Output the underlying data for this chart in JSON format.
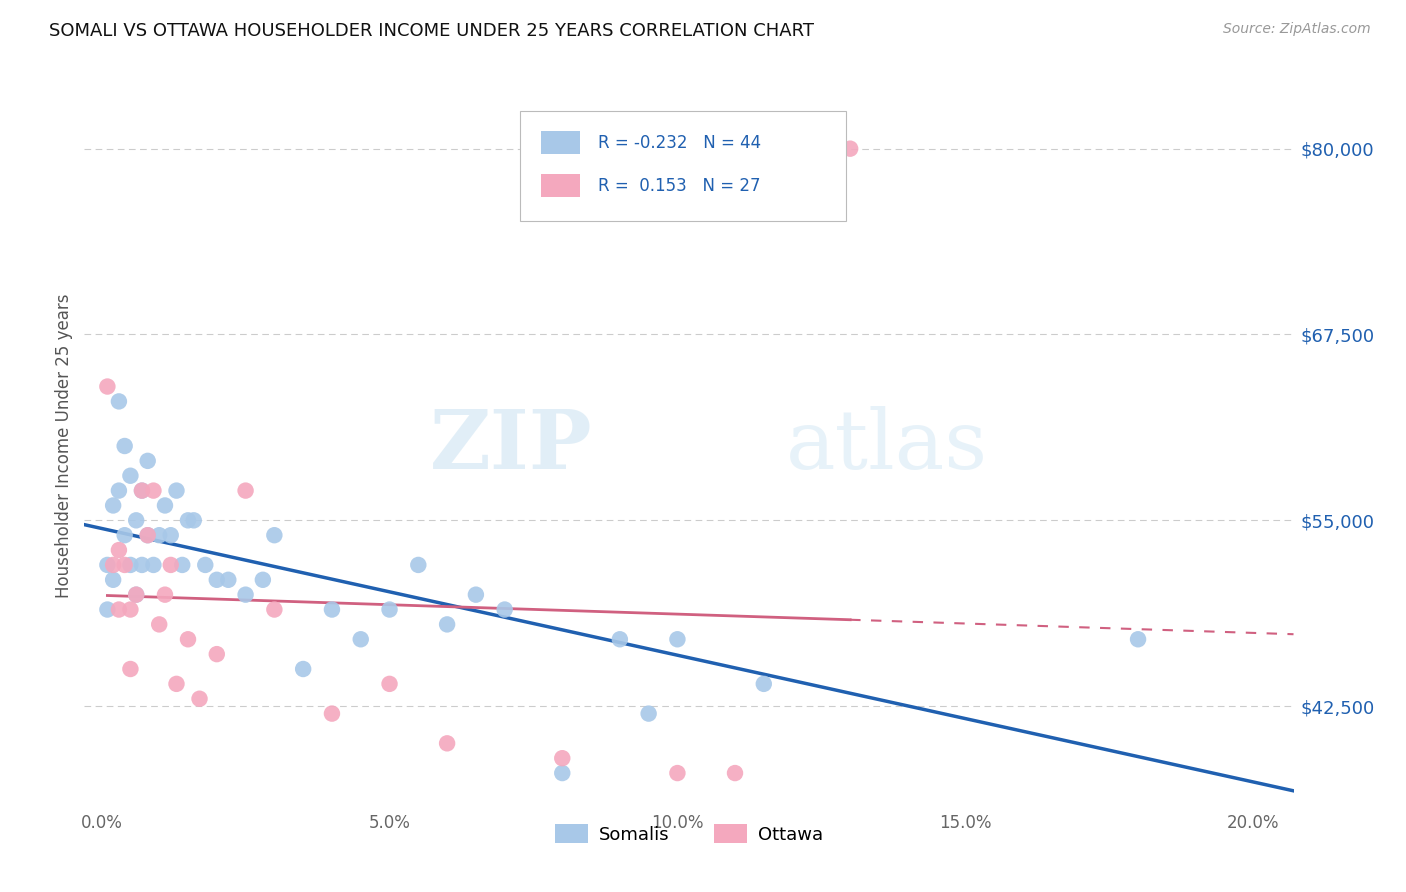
{
  "title": "SOMALI VS OTTAWA HOUSEHOLDER INCOME UNDER 25 YEARS CORRELATION CHART",
  "source": "Source: ZipAtlas.com",
  "ylabel": "Householder Income Under 25 years",
  "xlabel_ticks": [
    "0.0%",
    "5.0%",
    "10.0%",
    "15.0%",
    "20.0%"
  ],
  "xlabel_vals": [
    0.0,
    0.05,
    0.1,
    0.15,
    0.2
  ],
  "ylim": [
    36000,
    84000
  ],
  "xlim": [
    -0.003,
    0.207
  ],
  "yticks": [
    42500,
    55000,
    67500,
    80000
  ],
  "ytick_labels": [
    "$42,500",
    "$55,000",
    "$67,500",
    "$80,000"
  ],
  "watermark_zip": "ZIP",
  "watermark_atlas": "atlas",
  "somali_color": "#a8c8e8",
  "ottawa_color": "#f4a8be",
  "somali_line_color": "#2060b0",
  "ottawa_line_color": "#d06080",
  "somali_r": "-0.232",
  "somali_n": "44",
  "ottawa_r": "0.153",
  "ottawa_n": "27",
  "legend_somali_label": "Somalis",
  "legend_ottawa_label": "Ottawa",
  "somali_x": [
    0.001,
    0.001,
    0.002,
    0.002,
    0.003,
    0.003,
    0.004,
    0.004,
    0.005,
    0.005,
    0.006,
    0.006,
    0.007,
    0.007,
    0.008,
    0.008,
    0.009,
    0.01,
    0.011,
    0.012,
    0.013,
    0.014,
    0.015,
    0.016,
    0.018,
    0.02,
    0.022,
    0.025,
    0.028,
    0.03,
    0.035,
    0.04,
    0.045,
    0.05,
    0.055,
    0.06,
    0.065,
    0.07,
    0.08,
    0.09,
    0.095,
    0.1,
    0.115,
    0.18
  ],
  "somali_y": [
    52000,
    49000,
    56000,
    51000,
    63000,
    57000,
    60000,
    54000,
    58000,
    52000,
    55000,
    50000,
    57000,
    52000,
    59000,
    54000,
    52000,
    54000,
    56000,
    54000,
    57000,
    52000,
    55000,
    55000,
    52000,
    51000,
    51000,
    50000,
    51000,
    54000,
    45000,
    49000,
    47000,
    49000,
    52000,
    48000,
    50000,
    49000,
    38000,
    47000,
    42000,
    47000,
    44000,
    47000
  ],
  "ottawa_x": [
    0.001,
    0.002,
    0.003,
    0.003,
    0.004,
    0.005,
    0.005,
    0.006,
    0.007,
    0.008,
    0.009,
    0.01,
    0.011,
    0.012,
    0.013,
    0.015,
    0.017,
    0.02,
    0.025,
    0.03,
    0.04,
    0.05,
    0.06,
    0.08,
    0.1,
    0.11,
    0.13
  ],
  "ottawa_y": [
    64000,
    52000,
    53000,
    49000,
    52000,
    49000,
    45000,
    50000,
    57000,
    54000,
    57000,
    48000,
    50000,
    52000,
    44000,
    47000,
    43000,
    46000,
    57000,
    49000,
    42000,
    44000,
    40000,
    39000,
    38000,
    38000,
    80000
  ]
}
